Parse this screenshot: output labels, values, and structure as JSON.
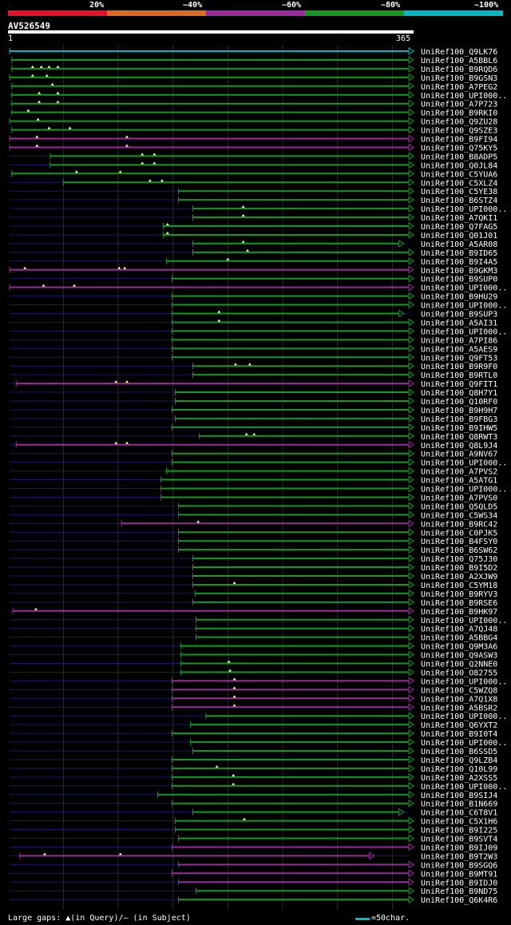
{
  "legend": {
    "labels": [
      "20%",
      "~40%",
      "~60%",
      "~80%",
      "~100%"
    ],
    "colors": [
      "#e8102a",
      "#e0691c",
      "#9b2d9b",
      "#119a21",
      "#00b7c5"
    ]
  },
  "query": {
    "name": "AV526549",
    "start": "1",
    "end": "365"
  },
  "footer": {
    "gaps": "Large gaps: ▲(in Query)/– (in Subject)",
    "scale": "=50char."
  },
  "chart_data": {
    "type": "alignment",
    "query_name": "AV526549",
    "query_length": 365,
    "scale_note": "=50char.",
    "color_scale": [
      "20%",
      "~40%",
      "~60%",
      "~80%",
      "~100%"
    ],
    "hits": [
      {
        "name": "UniRef100_Q9LK76",
        "start": 1,
        "end": 365,
        "color": "cyan",
        "gaps": []
      },
      {
        "name": "UniRef100_A5BBL6",
        "start": 3,
        "end": 365,
        "color": "green",
        "gaps": []
      },
      {
        "name": "UniRef100_B9RQD6",
        "start": 3,
        "end": 365,
        "color": "green",
        "gaps": [
          22,
          30,
          37,
          45
        ]
      },
      {
        "name": "UniRef100_B9GSN3",
        "start": 1,
        "end": 365,
        "color": "green",
        "gaps": [
          22,
          35
        ]
      },
      {
        "name": "UniRef100_A7PEG2",
        "start": 3,
        "end": 365,
        "color": "green",
        "gaps": [
          40
        ]
      },
      {
        "name": "UniRef100_UPI000..",
        "start": 3,
        "end": 365,
        "color": "green",
        "gaps": [
          28,
          45
        ]
      },
      {
        "name": "UniRef100_A7P723",
        "start": 3,
        "end": 365,
        "color": "green",
        "gaps": [
          28,
          45
        ]
      },
      {
        "name": "UniRef100_B9RKI0",
        "start": 3,
        "end": 365,
        "color": "green",
        "gaps": [
          18
        ]
      },
      {
        "name": "UniRef100_Q9ZU28",
        "start": 1,
        "end": 365,
        "color": "green",
        "gaps": [
          27
        ]
      },
      {
        "name": "UniRef100_Q9SZE3",
        "start": 3,
        "end": 365,
        "color": "green",
        "gaps": [
          37,
          56
        ]
      },
      {
        "name": "UniRef100_B9FI94",
        "start": 1,
        "end": 365,
        "color": "magenta",
        "gaps": [
          26,
          108
        ]
      },
      {
        "name": "UniRef100_Q75KY5",
        "start": 1,
        "end": 365,
        "color": "magenta",
        "gaps": [
          26,
          108
        ]
      },
      {
        "name": "UniRef100_B8ADP5",
        "start": 38,
        "end": 365,
        "color": "green",
        "gaps": [
          122,
          133
        ]
      },
      {
        "name": "UniRef100_Q0JL84",
        "start": 38,
        "end": 365,
        "color": "green",
        "gaps": [
          122,
          133
        ]
      },
      {
        "name": "UniRef100_C5YUA6",
        "start": 3,
        "end": 365,
        "color": "green",
        "gaps": [
          62,
          102
        ]
      },
      {
        "name": "UniRef100_C5XLZ4",
        "start": 50,
        "end": 365,
        "color": "green",
        "gaps": [
          129,
          140
        ]
      },
      {
        "name": "UniRef100_C5YE38",
        "start": 155,
        "end": 365,
        "color": "green",
        "gaps": []
      },
      {
        "name": "UniRef100_B6STZ4",
        "start": 155,
        "end": 365,
        "color": "green",
        "gaps": []
      },
      {
        "name": "UniRef100_UPI000..",
        "start": 168,
        "end": 365,
        "color": "green",
        "gaps": [
          214
        ]
      },
      {
        "name": "UniRef100_A7QKI1",
        "start": 168,
        "end": 365,
        "color": "green",
        "gaps": [
          214
        ]
      },
      {
        "name": "UniRef100_Q7FAG5",
        "start": 141,
        "end": 365,
        "color": "green",
        "gaps": [
          145
        ]
      },
      {
        "name": "UniRef100_Q01J01",
        "start": 141,
        "end": 365,
        "color": "green",
        "gaps": [
          145
        ]
      },
      {
        "name": "UniRef100_A5AR08",
        "start": 168,
        "end": 356,
        "color": "green",
        "gaps": [
          214
        ]
      },
      {
        "name": "UniRef100_B9ID65",
        "start": 168,
        "end": 365,
        "color": "green",
        "gaps": [
          218
        ]
      },
      {
        "name": "UniRef100_B9I4A5",
        "start": 144,
        "end": 365,
        "color": "green",
        "gaps": [
          200
        ]
      },
      {
        "name": "UniRef100_B9GKM3",
        "start": 1,
        "end": 365,
        "color": "magenta",
        "gaps": [
          15,
          101,
          106
        ]
      },
      {
        "name": "UniRef100_B9SUP0",
        "start": 149,
        "end": 365,
        "color": "green",
        "gaps": []
      },
      {
        "name": "UniRef100_UPI000..",
        "start": 1,
        "end": 365,
        "color": "magenta",
        "gaps": [
          32,
          60
        ]
      },
      {
        "name": "UniRef100_B9HU29",
        "start": 149,
        "end": 365,
        "color": "green",
        "gaps": []
      },
      {
        "name": "UniRef100_UPI000..",
        "start": 149,
        "end": 365,
        "color": "green",
        "gaps": []
      },
      {
        "name": "UniRef100_B9SUP3",
        "start": 149,
        "end": 356,
        "color": "green",
        "gaps": [
          192
        ]
      },
      {
        "name": "UniRef100_A5AI31",
        "start": 149,
        "end": 365,
        "color": "green",
        "gaps": [
          192
        ]
      },
      {
        "name": "UniRef100_UPI000..",
        "start": 149,
        "end": 365,
        "color": "green",
        "gaps": []
      },
      {
        "name": "UniRef100_A7PI86",
        "start": 149,
        "end": 365,
        "color": "green",
        "gaps": []
      },
      {
        "name": "UniRef100_A5AES9",
        "start": 149,
        "end": 365,
        "color": "green",
        "gaps": []
      },
      {
        "name": "UniRef100_Q9FT53",
        "start": 149,
        "end": 365,
        "color": "green",
        "gaps": []
      },
      {
        "name": "UniRef100_B9R9F0",
        "start": 168,
        "end": 365,
        "color": "green",
        "gaps": [
          207,
          220
        ]
      },
      {
        "name": "UniRef100_B9RTL0",
        "start": 168,
        "end": 365,
        "color": "green",
        "gaps": []
      },
      {
        "name": "UniRef100_Q9FIT1",
        "start": 7,
        "end": 365,
        "color": "magenta",
        "gaps": [
          98,
          108
        ]
      },
      {
        "name": "UniRef100_Q8H7Y1",
        "start": 152,
        "end": 365,
        "color": "green",
        "gaps": []
      },
      {
        "name": "UniRef100_Q10RF0",
        "start": 152,
        "end": 365,
        "color": "green",
        "gaps": []
      },
      {
        "name": "UniRef100_B9H9H7",
        "start": 149,
        "end": 365,
        "color": "green",
        "gaps": []
      },
      {
        "name": "UniRef100_B9FBG3",
        "start": 152,
        "end": 365,
        "color": "green",
        "gaps": []
      },
      {
        "name": "UniRef100_B9IHW5",
        "start": 149,
        "end": 365,
        "color": "green",
        "gaps": []
      },
      {
        "name": "UniRef100_Q8RWT3",
        "start": 174,
        "end": 365,
        "color": "green",
        "gaps": [
          217,
          224
        ]
      },
      {
        "name": "UniRef100_Q8L9J4",
        "start": 7,
        "end": 365,
        "color": "magenta",
        "gaps": [
          98,
          108
        ]
      },
      {
        "name": "UniRef100_A9NV67",
        "start": 149,
        "end": 365,
        "color": "green",
        "gaps": []
      },
      {
        "name": "UniRef100_UPI000..",
        "start": 149,
        "end": 365,
        "color": "green",
        "gaps": []
      },
      {
        "name": "UniRef100_A7PVS2",
        "start": 144,
        "end": 365,
        "color": "green",
        "gaps": []
      },
      {
        "name": "UniRef100_A5ATG1",
        "start": 139,
        "end": 365,
        "color": "green",
        "gaps": []
      },
      {
        "name": "UniRef100_UPI000..",
        "start": 139,
        "end": 365,
        "color": "green",
        "gaps": []
      },
      {
        "name": "UniRef100_A7PVS0",
        "start": 139,
        "end": 365,
        "color": "green",
        "gaps": []
      },
      {
        "name": "UniRef100_Q5QLD5",
        "start": 155,
        "end": 365,
        "color": "green",
        "gaps": []
      },
      {
        "name": "UniRef100_C5WS34",
        "start": 155,
        "end": 365,
        "color": "green",
        "gaps": []
      },
      {
        "name": "UniRef100_B9RC42",
        "start": 103,
        "end": 365,
        "color": "magenta",
        "gaps": [
          173
        ]
      },
      {
        "name": "UniRef100_C0PJK5",
        "start": 155,
        "end": 365,
        "color": "green",
        "gaps": []
      },
      {
        "name": "UniRef100_B4FSY0",
        "start": 155,
        "end": 365,
        "color": "green",
        "gaps": []
      },
      {
        "name": "UniRef100_B6SW62",
        "start": 155,
        "end": 365,
        "color": "green",
        "gaps": []
      },
      {
        "name": "UniRef100_Q75J30",
        "start": 168,
        "end": 365,
        "color": "green",
        "gaps": []
      },
      {
        "name": "UniRef100_B9I5D2",
        "start": 168,
        "end": 365,
        "color": "green",
        "gaps": []
      },
      {
        "name": "UniRef100_A2XJW9",
        "start": 168,
        "end": 365,
        "color": "green",
        "gaps": []
      },
      {
        "name": "UniRef100_C5YM18",
        "start": 168,
        "end": 365,
        "color": "green",
        "gaps": [
          206
        ]
      },
      {
        "name": "UniRef100_B9RYV3",
        "start": 170,
        "end": 365,
        "color": "green",
        "gaps": []
      },
      {
        "name": "UniRef100_B9RSE6",
        "start": 168,
        "end": 365,
        "color": "green",
        "gaps": []
      },
      {
        "name": "UniRef100_B9HK97",
        "start": 4,
        "end": 365,
        "color": "magenta",
        "gaps": [
          25
        ]
      },
      {
        "name": "UniRef100_UPI000..",
        "start": 171,
        "end": 365,
        "color": "green",
        "gaps": []
      },
      {
        "name": "UniRef100_A7QJ48",
        "start": 171,
        "end": 365,
        "color": "green",
        "gaps": []
      },
      {
        "name": "UniRef100_A5BBG4",
        "start": 171,
        "end": 365,
        "color": "green",
        "gaps": []
      },
      {
        "name": "UniRef100_Q9M3A6",
        "start": 157,
        "end": 365,
        "color": "green",
        "gaps": []
      },
      {
        "name": "UniRef100_Q9ASW3",
        "start": 157,
        "end": 365,
        "color": "green",
        "gaps": []
      },
      {
        "name": "UniRef100_Q2NNE0",
        "start": 157,
        "end": 365,
        "color": "green",
        "gaps": [
          201
        ]
      },
      {
        "name": "UniRef100_O82755",
        "start": 157,
        "end": 365,
        "color": "green",
        "gaps": [
          202
        ]
      },
      {
        "name": "UniRef100_UPI000..",
        "start": 149,
        "end": 365,
        "color": "magenta",
        "gaps": [
          206
        ]
      },
      {
        "name": "UniRef100_C5WZQ8",
        "start": 149,
        "end": 365,
        "color": "magenta",
        "gaps": [
          206
        ]
      },
      {
        "name": "UniRef100_A7Q1X8",
        "start": 149,
        "end": 365,
        "color": "magenta",
        "gaps": [
          206
        ]
      },
      {
        "name": "UniRef100_A5BSR2",
        "start": 149,
        "end": 365,
        "color": "magenta",
        "gaps": [
          206
        ]
      },
      {
        "name": "UniRef100_UPI000..",
        "start": 180,
        "end": 365,
        "color": "green",
        "gaps": []
      },
      {
        "name": "UniRef100_Q6YXT2",
        "start": 166,
        "end": 365,
        "color": "green",
        "gaps": []
      },
      {
        "name": "UniRef100_B9I0T4",
        "start": 149,
        "end": 365,
        "color": "green",
        "gaps": []
      },
      {
        "name": "UniRef100_UPI000..",
        "start": 166,
        "end": 365,
        "color": "green",
        "gaps": []
      },
      {
        "name": "UniRef100_B6SSD5",
        "start": 168,
        "end": 365,
        "color": "green",
        "gaps": []
      },
      {
        "name": "UniRef100_Q9LZB4",
        "start": 149,
        "end": 365,
        "color": "green",
        "gaps": []
      },
      {
        "name": "UniRef100_Q10L99",
        "start": 149,
        "end": 365,
        "color": "green",
        "gaps": [
          190
        ]
      },
      {
        "name": "UniRef100_A2XSS5",
        "start": 149,
        "end": 365,
        "color": "green",
        "gaps": [
          205
        ]
      },
      {
        "name": "UniRef100_UPI000..",
        "start": 149,
        "end": 365,
        "color": "green",
        "gaps": [
          205
        ]
      },
      {
        "name": "UniRef100_B9SIJ4",
        "start": 136,
        "end": 365,
        "color": "green",
        "gaps": []
      },
      {
        "name": "UniRef100_B1N669",
        "start": 149,
        "end": 365,
        "color": "green",
        "gaps": []
      },
      {
        "name": "UniRef100_C6T8V1",
        "start": 168,
        "end": 356,
        "color": "green",
        "gaps": []
      },
      {
        "name": "UniRef100_C5X1H6",
        "start": 152,
        "end": 365,
        "color": "green",
        "gaps": [
          215
        ]
      },
      {
        "name": "UniRef100_B9I225",
        "start": 152,
        "end": 365,
        "color": "green",
        "gaps": []
      },
      {
        "name": "UniRef100_B9SVT4",
        "start": 155,
        "end": 365,
        "color": "green",
        "gaps": []
      },
      {
        "name": "UniRef100_B9IJ09",
        "start": 149,
        "end": 365,
        "color": "magenta",
        "gaps": []
      },
      {
        "name": "UniRef100_B9T2W3",
        "start": 10,
        "end": 329,
        "color": "magenta",
        "gaps": [
          33,
          102
        ]
      },
      {
        "name": "UniRef100_B9SGQ6",
        "start": 155,
        "end": 365,
        "color": "magenta",
        "gaps": []
      },
      {
        "name": "UniRef100_B9MT91",
        "start": 149,
        "end": 365,
        "color": "magenta",
        "gaps": []
      },
      {
        "name": "UniRef100_B9IDJ0",
        "start": 155,
        "end": 365,
        "color": "magenta",
        "gaps": []
      },
      {
        "name": "UniRef100_B9ND75",
        "start": 171,
        "end": 365,
        "color": "green",
        "gaps": []
      },
      {
        "name": "UniRef100_Q6K4R6",
        "start": 155,
        "end": 365,
        "color": "green",
        "gaps": []
      }
    ]
  }
}
